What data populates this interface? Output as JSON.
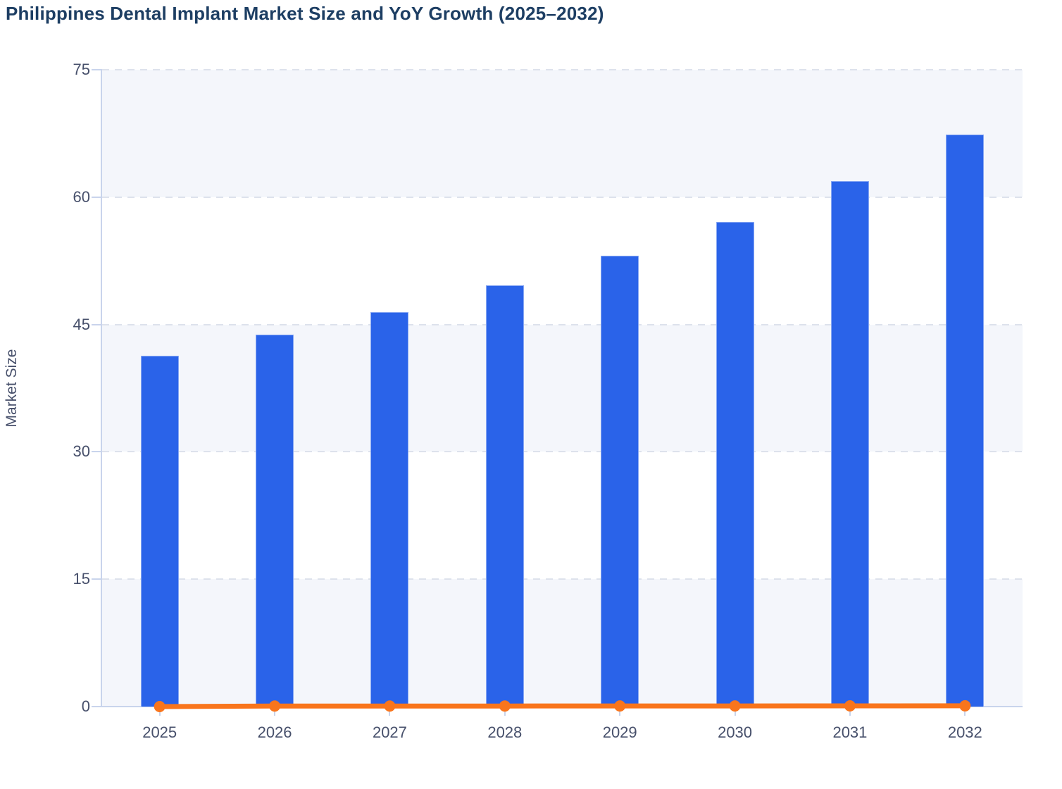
{
  "chart_data": {
    "type": "bar",
    "title": "Philippines Dental Implant Market Size and YoY Growth (2025–2032)",
    "ylabel": "Market Size",
    "xlabel": "",
    "categories": [
      "2025",
      "2026",
      "2027",
      "2028",
      "2029",
      "2030",
      "2031",
      "2032"
    ],
    "series": [
      {
        "name": "Market Size",
        "type": "bar",
        "color": "#2a63e9",
        "values": [
          41.3,
          43.8,
          46.5,
          49.6,
          53.1,
          57.1,
          61.9,
          67.4
        ]
      },
      {
        "name": "YoY Growth",
        "type": "line",
        "color": "#f9751c",
        "values": [
          0,
          0.061,
          0.062,
          0.067,
          0.071,
          0.075,
          0.084,
          0.089
        ]
      }
    ],
    "ylim": [
      0,
      75
    ],
    "yticks": [
      0,
      15,
      30,
      45,
      60,
      75
    ],
    "grid": "dashed horizontal",
    "legend": "none",
    "band_colors": [
      "#f4f6fb",
      "#ffffff"
    ],
    "grid_color": "#dde2ec",
    "axis_color": "#c9d4ec",
    "text_color": "#47506b",
    "title_color": "#1d3e63"
  }
}
